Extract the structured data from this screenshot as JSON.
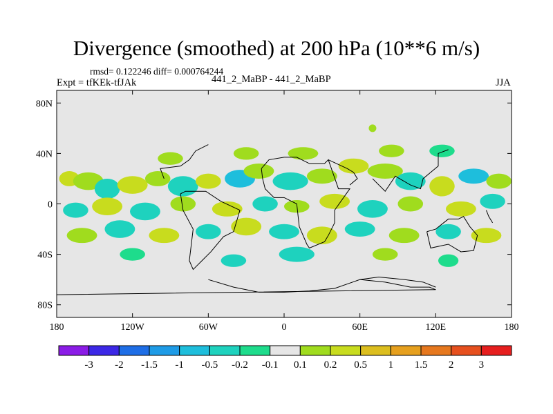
{
  "title": "Divergence (smoothed) at 200 hPa (10**6 m/s)",
  "stats": "rmsd= 0.122246 diff= 0.000764244",
  "expt": "Expt = tfKEk-tfJAk",
  "center_label": "441_2_MaBP - 441_2_MaBP",
  "season": "JJA",
  "chart_data": {
    "type": "heatmap",
    "title": "Divergence (smoothed) at 200 hPa (10**6 m/s)",
    "xlim": [
      -180,
      180
    ],
    "ylim": [
      -90,
      90
    ],
    "x_ticks": [
      {
        "value": -180,
        "label": "180"
      },
      {
        "value": -120,
        "label": "120W"
      },
      {
        "value": -60,
        "label": "60W"
      },
      {
        "value": 0,
        "label": "0"
      },
      {
        "value": 60,
        "label": "60E"
      },
      {
        "value": 120,
        "label": "120E"
      },
      {
        "value": 180,
        "label": "180"
      }
    ],
    "y_ticks": [
      {
        "value": 80,
        "label": "80N"
      },
      {
        "value": 40,
        "label": "40N"
      },
      {
        "value": 0,
        "label": "0"
      },
      {
        "value": -40,
        "label": "40S"
      },
      {
        "value": -80,
        "label": "80S"
      }
    ],
    "colorbar": {
      "colors": [
        "#8b1ce6",
        "#3c28e6",
        "#1e6ee6",
        "#1e9be6",
        "#1ebedc",
        "#1ed2be",
        "#1edc8c",
        "#e6e6e6",
        "#a0dc1e",
        "#c8dc1e",
        "#dcbe1e",
        "#e6a01e",
        "#e6781e",
        "#e6501e",
        "#e61e1e"
      ],
      "tick_labels": [
        "-3",
        "-2",
        "-1.5",
        "-1",
        "-0.5",
        "-0.2",
        "-0.1",
        "0.1",
        "0.2",
        "0.5",
        "1",
        "1.5",
        "2",
        "3"
      ]
    },
    "blobs": [
      {
        "lon": -170,
        "lat": 20,
        "rx": 8,
        "ry": 6,
        "level": 9
      },
      {
        "lon": -155,
        "lat": 18,
        "rx": 12,
        "ry": 7,
        "level": 8
      },
      {
        "lon": -140,
        "lat": 12,
        "rx": 10,
        "ry": 8,
        "level": 5
      },
      {
        "lon": -120,
        "lat": 15,
        "rx": 12,
        "ry": 7,
        "level": 9
      },
      {
        "lon": -100,
        "lat": 20,
        "rx": 10,
        "ry": 6,
        "level": 8
      },
      {
        "lon": -80,
        "lat": 14,
        "rx": 12,
        "ry": 8,
        "level": 5
      },
      {
        "lon": -60,
        "lat": 18,
        "rx": 10,
        "ry": 6,
        "level": 9
      },
      {
        "lon": -35,
        "lat": 20,
        "rx": 12,
        "ry": 7,
        "level": 4
      },
      {
        "lon": -20,
        "lat": 26,
        "rx": 12,
        "ry": 6,
        "level": 8
      },
      {
        "lon": 5,
        "lat": 18,
        "rx": 14,
        "ry": 7,
        "level": 5
      },
      {
        "lon": 30,
        "lat": 22,
        "rx": 12,
        "ry": 6,
        "level": 8
      },
      {
        "lon": 55,
        "lat": 30,
        "rx": 12,
        "ry": 6,
        "level": 9
      },
      {
        "lon": 80,
        "lat": 26,
        "rx": 14,
        "ry": 6,
        "level": 8
      },
      {
        "lon": 100,
        "lat": 18,
        "rx": 12,
        "ry": 7,
        "level": 5
      },
      {
        "lon": 125,
        "lat": 14,
        "rx": 10,
        "ry": 8,
        "level": 9
      },
      {
        "lon": 150,
        "lat": 22,
        "rx": 12,
        "ry": 6,
        "level": 4
      },
      {
        "lon": 170,
        "lat": 18,
        "rx": 10,
        "ry": 6,
        "level": 8
      },
      {
        "lon": -90,
        "lat": 36,
        "rx": 10,
        "ry": 5,
        "level": 8
      },
      {
        "lon": -30,
        "lat": 40,
        "rx": 10,
        "ry": 5,
        "level": 8
      },
      {
        "lon": 15,
        "lat": 40,
        "rx": 12,
        "ry": 5,
        "level": 8
      },
      {
        "lon": 85,
        "lat": 42,
        "rx": 10,
        "ry": 5,
        "level": 8
      },
      {
        "lon": 125,
        "lat": 42,
        "rx": 10,
        "ry": 5,
        "level": 6
      },
      {
        "lon": 70,
        "lat": 60,
        "rx": 3,
        "ry": 3,
        "level": 8
      },
      {
        "lon": -165,
        "lat": -5,
        "rx": 10,
        "ry": 6,
        "level": 5
      },
      {
        "lon": -140,
        "lat": -2,
        "rx": 12,
        "ry": 7,
        "level": 9
      },
      {
        "lon": -110,
        "lat": -6,
        "rx": 12,
        "ry": 7,
        "level": 5
      },
      {
        "lon": -80,
        "lat": 0,
        "rx": 10,
        "ry": 6,
        "level": 8
      },
      {
        "lon": -45,
        "lat": -4,
        "rx": 12,
        "ry": 6,
        "level": 9
      },
      {
        "lon": -15,
        "lat": 0,
        "rx": 10,
        "ry": 6,
        "level": 5
      },
      {
        "lon": 10,
        "lat": -2,
        "rx": 10,
        "ry": 5,
        "level": 8
      },
      {
        "lon": 40,
        "lat": 2,
        "rx": 12,
        "ry": 6,
        "level": 9
      },
      {
        "lon": 70,
        "lat": -4,
        "rx": 12,
        "ry": 7,
        "level": 5
      },
      {
        "lon": 100,
        "lat": 0,
        "rx": 10,
        "ry": 6,
        "level": 8
      },
      {
        "lon": 140,
        "lat": -4,
        "rx": 12,
        "ry": 6,
        "level": 9
      },
      {
        "lon": 165,
        "lat": 2,
        "rx": 10,
        "ry": 6,
        "level": 5
      },
      {
        "lon": -160,
        "lat": -25,
        "rx": 12,
        "ry": 6,
        "level": 8
      },
      {
        "lon": -130,
        "lat": -20,
        "rx": 12,
        "ry": 7,
        "level": 5
      },
      {
        "lon": -95,
        "lat": -25,
        "rx": 12,
        "ry": 6,
        "level": 9
      },
      {
        "lon": -60,
        "lat": -22,
        "rx": 10,
        "ry": 6,
        "level": 5
      },
      {
        "lon": -30,
        "lat": -18,
        "rx": 12,
        "ry": 7,
        "level": 9
      },
      {
        "lon": 0,
        "lat": -22,
        "rx": 12,
        "ry": 6,
        "level": 5
      },
      {
        "lon": 30,
        "lat": -25,
        "rx": 12,
        "ry": 7,
        "level": 9
      },
      {
        "lon": 60,
        "lat": -20,
        "rx": 12,
        "ry": 6,
        "level": 5
      },
      {
        "lon": 95,
        "lat": -25,
        "rx": 12,
        "ry": 6,
        "level": 8
      },
      {
        "lon": 130,
        "lat": -22,
        "rx": 10,
        "ry": 6,
        "level": 5
      },
      {
        "lon": 160,
        "lat": -25,
        "rx": 12,
        "ry": 6,
        "level": 9
      },
      {
        "lon": -120,
        "lat": -40,
        "rx": 10,
        "ry": 5,
        "level": 6
      },
      {
        "lon": -40,
        "lat": -45,
        "rx": 10,
        "ry": 5,
        "level": 5
      },
      {
        "lon": 10,
        "lat": -40,
        "rx": 14,
        "ry": 6,
        "level": 5
      },
      {
        "lon": 80,
        "lat": -40,
        "rx": 10,
        "ry": 5,
        "level": 8
      },
      {
        "lon": 130,
        "lat": -45,
        "rx": 8,
        "ry": 5,
        "level": 6
      }
    ]
  }
}
